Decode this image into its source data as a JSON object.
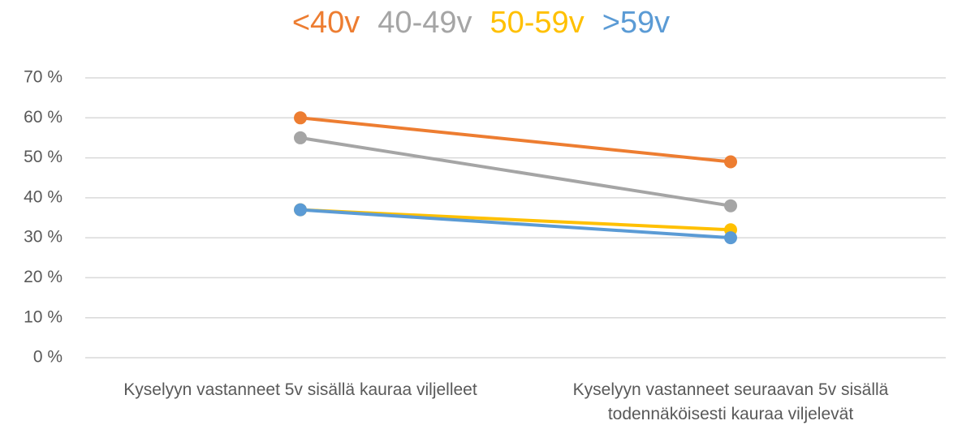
{
  "chart_data": {
    "type": "line",
    "categories": [
      "Kyselyyn vastanneet 5v sisällä kauraa viljelleet",
      "Kyselyyn vastanneet seuraavan 5v sisällä todennäköisesti kauraa viljelevät"
    ],
    "series": [
      {
        "name": "<40v",
        "color": "#ED7D31",
        "values": [
          60,
          49
        ]
      },
      {
        "name": "40-49v",
        "color": "#A5A5A5",
        "values": [
          55,
          38
        ]
      },
      {
        "name": "50-59v",
        "color": "#FFC000",
        "values": [
          37,
          32
        ]
      },
      {
        "name": ">59v",
        "color": "#5B9BD5",
        "values": [
          37,
          30
        ]
      }
    ],
    "ylim": [
      0,
      70
    ],
    "yticks": [
      {
        "value": 0,
        "label": "0 %"
      },
      {
        "value": 10,
        "label": "10 %"
      },
      {
        "value": 20,
        "label": "20 %"
      },
      {
        "value": 30,
        "label": "30 %"
      },
      {
        "value": 40,
        "label": "40 %"
      },
      {
        "value": 50,
        "label": "50 %"
      },
      {
        "value": 60,
        "label": "60 %"
      },
      {
        "value": 70,
        "label": "70 %"
      }
    ],
    "grid": true,
    "legend": "top"
  }
}
